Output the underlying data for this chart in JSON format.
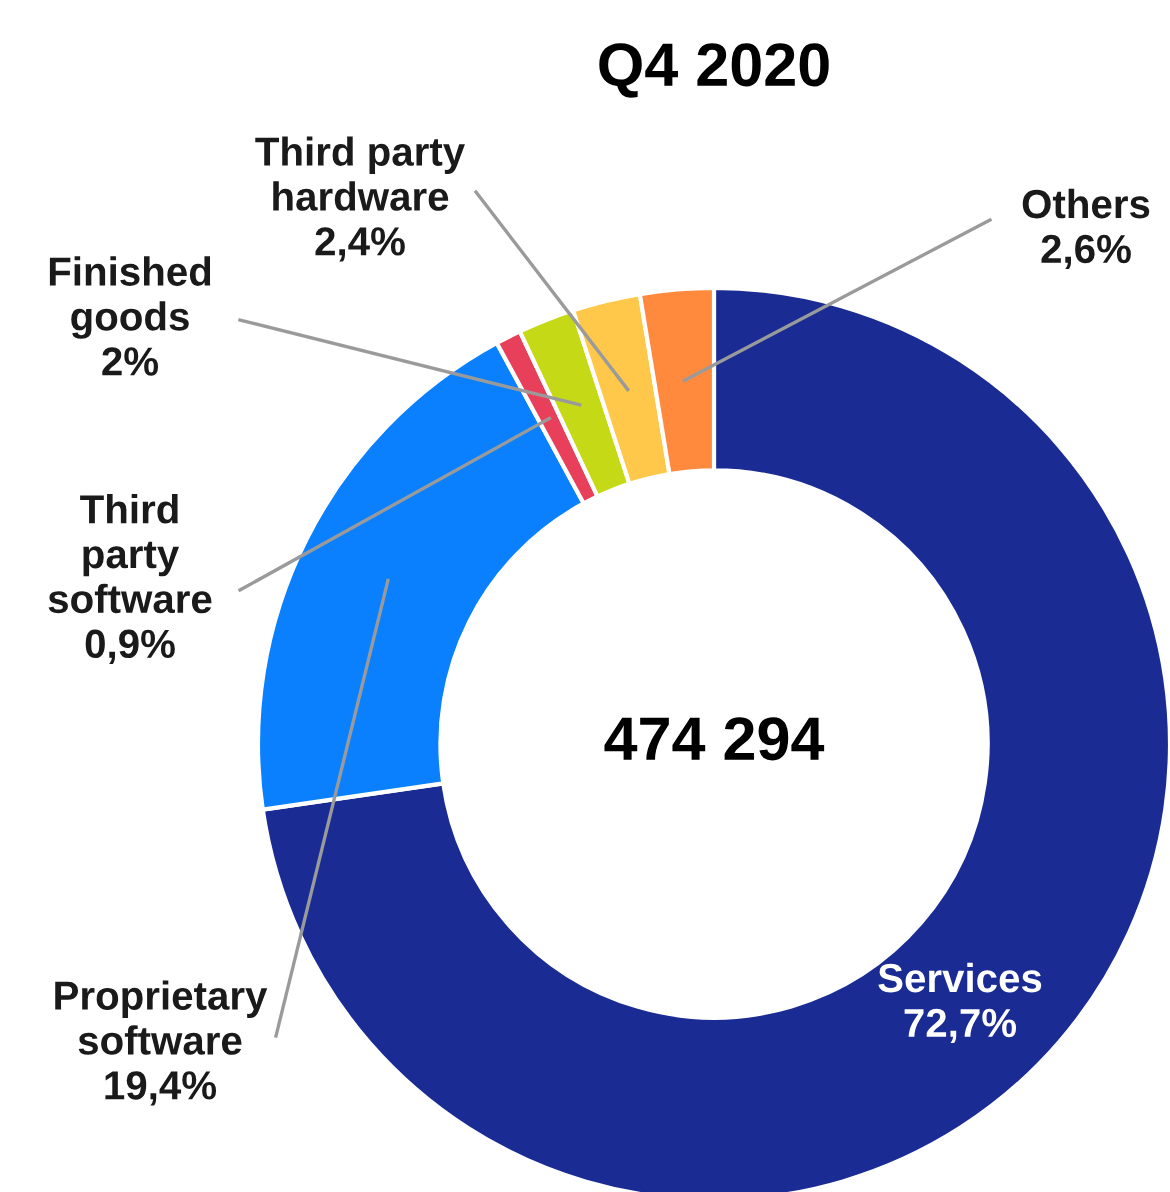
{
  "chart_data": {
    "type": "donut",
    "title": "Q4 2020",
    "categories": [
      "Services",
      "Proprietary software",
      "Third party software",
      "Finished goods",
      "Third party hardware",
      "Others"
    ],
    "values": [
      72.7,
      19.4,
      0.9,
      2,
      2.4,
      2.6
    ],
    "colors": [
      "#1a2b94",
      "#0a80ff",
      "#e8405a",
      "#c5d916",
      "#ffc84a",
      "#ff8a3d"
    ],
    "value_labels": [
      "72,7%",
      "19,4%",
      "0,9%",
      "2%",
      "2,4%",
      "2,6%"
    ],
    "annotations": [
      "474 294"
    ],
    "legend": false
  }
}
